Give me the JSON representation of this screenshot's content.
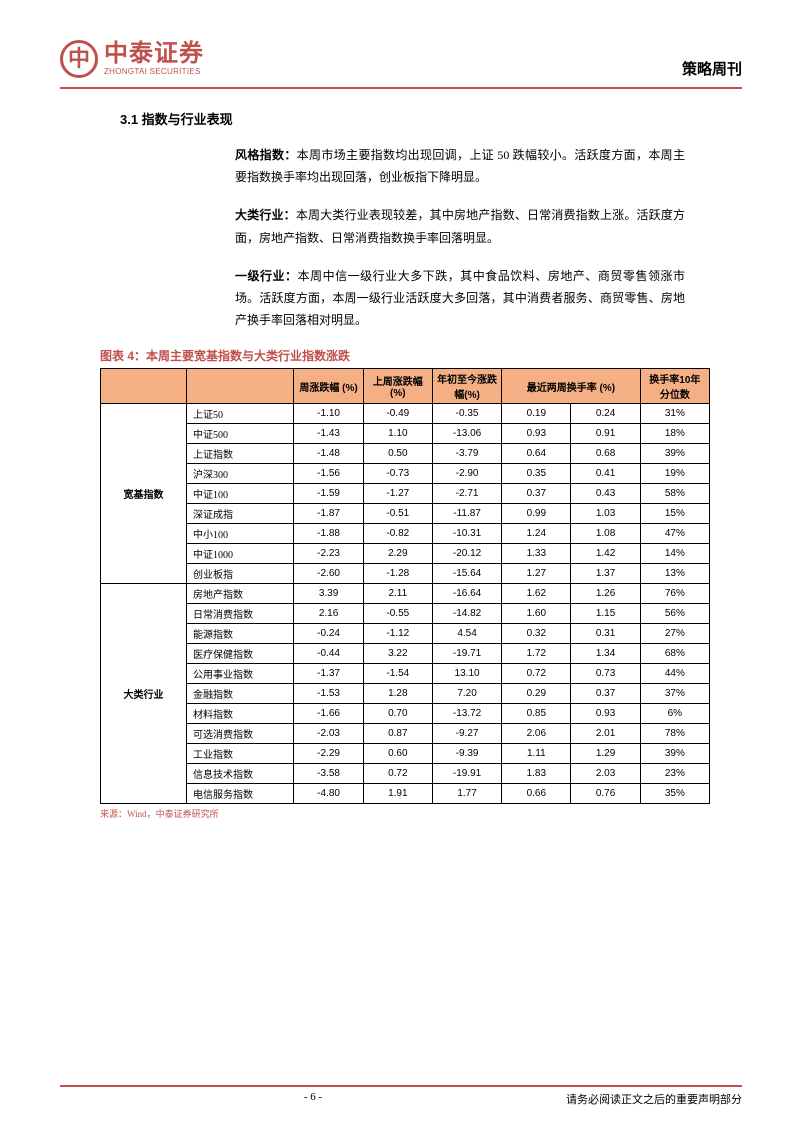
{
  "header": {
    "logo_cn": "中泰证券",
    "logo_en": "ZHONGTAI SECURITIES",
    "logo_mark": "中",
    "right_title": "策略周刊"
  },
  "section_title": "3.1 指数与行业表现",
  "paragraphs": [
    {
      "label": "风格指数：",
      "text": "本周市场主要指数均出现回调，上证 50 跌幅较小。活跃度方面，本周主要指数换手率均出现回落，创业板指下降明显。"
    },
    {
      "label": "大类行业：",
      "text": "本周大类行业表现较差，其中房地产指数、日常消费指数上涨。活跃度方面，房地产指数、日常消费指数换手率回落明显。"
    },
    {
      "label": "一级行业：",
      "text": "本周中信一级行业大多下跌，其中食品饮料、房地产、商贸零售领涨市场。活跃度方面，本周一级行业活跃度大多回落，其中消费者服务、商贸零售、房地产换手率回落相对明显。"
    }
  ],
  "table": {
    "title": "图表 4：本周主要宽基指数与大类行业指数涨跌",
    "headers": [
      "",
      "",
      "周涨跌幅 (%)",
      "上周涨跌幅 (%)",
      "年初至今涨跌幅(%)",
      "最近两周换手率 (%)",
      "换手率10年分位数"
    ],
    "header_colspan": {
      "turnover": 2
    },
    "header_bg": "#f4b084",
    "border_color": "#000000",
    "groups": [
      {
        "name": "宽基指数",
        "rows": [
          {
            "name": "上证50",
            "c1": "-1.10",
            "c2": "-0.49",
            "c3": "-0.35",
            "c4": "0.19",
            "c5": "0.24",
            "c6": "31%"
          },
          {
            "name": "中证500",
            "c1": "-1.43",
            "c2": "1.10",
            "c3": "-13.06",
            "c4": "0.93",
            "c5": "0.91",
            "c6": "18%"
          },
          {
            "name": "上证指数",
            "c1": "-1.48",
            "c2": "0.50",
            "c3": "-3.79",
            "c4": "0.64",
            "c5": "0.68",
            "c6": "39%"
          },
          {
            "name": "沪深300",
            "c1": "-1.56",
            "c2": "-0.73",
            "c3": "-2.90",
            "c4": "0.35",
            "c5": "0.41",
            "c6": "19%"
          },
          {
            "name": "中证100",
            "c1": "-1.59",
            "c2": "-1.27",
            "c3": "-2.71",
            "c4": "0.37",
            "c5": "0.43",
            "c6": "58%"
          },
          {
            "name": "深证成指",
            "c1": "-1.87",
            "c2": "-0.51",
            "c3": "-11.87",
            "c4": "0.99",
            "c5": "1.03",
            "c6": "15%"
          },
          {
            "name": "中小100",
            "c1": "-1.88",
            "c2": "-0.82",
            "c3": "-10.31",
            "c4": "1.24",
            "c5": "1.08",
            "c6": "47%"
          },
          {
            "name": "中证1000",
            "c1": "-2.23",
            "c2": "2.29",
            "c3": "-20.12",
            "c4": "1.33",
            "c5": "1.42",
            "c6": "14%"
          },
          {
            "name": "创业板指",
            "c1": "-2.60",
            "c2": "-1.28",
            "c3": "-15.64",
            "c4": "1.27",
            "c5": "1.37",
            "c6": "13%"
          }
        ]
      },
      {
        "name": "大类行业",
        "rows": [
          {
            "name": "房地产指数",
            "c1": "3.39",
            "c2": "2.11",
            "c3": "-16.64",
            "c4": "1.62",
            "c5": "1.26",
            "c6": "76%"
          },
          {
            "name": "日常消费指数",
            "c1": "2.16",
            "c2": "-0.55",
            "c3": "-14.82",
            "c4": "1.60",
            "c5": "1.15",
            "c6": "56%"
          },
          {
            "name": "能源指数",
            "c1": "-0.24",
            "c2": "-1.12",
            "c3": "4.54",
            "c4": "0.32",
            "c5": "0.31",
            "c6": "27%"
          },
          {
            "name": "医疗保健指数",
            "c1": "-0.44",
            "c2": "3.22",
            "c3": "-19.71",
            "c4": "1.72",
            "c5": "1.34",
            "c6": "68%"
          },
          {
            "name": "公用事业指数",
            "c1": "-1.37",
            "c2": "-1.54",
            "c3": "13.10",
            "c4": "0.72",
            "c5": "0.73",
            "c6": "44%"
          },
          {
            "name": "金融指数",
            "c1": "-1.53",
            "c2": "1.28",
            "c3": "7.20",
            "c4": "0.29",
            "c5": "0.37",
            "c6": "37%"
          },
          {
            "name": "材料指数",
            "c1": "-1.66",
            "c2": "0.70",
            "c3": "-13.72",
            "c4": "0.85",
            "c5": "0.93",
            "c6": "6%"
          },
          {
            "name": "可选消费指数",
            "c1": "-2.03",
            "c2": "0.87",
            "c3": "-9.27",
            "c4": "2.06",
            "c5": "2.01",
            "c6": "78%"
          },
          {
            "name": "工业指数",
            "c1": "-2.29",
            "c2": "0.60",
            "c3": "-9.39",
            "c4": "1.11",
            "c5": "1.29",
            "c6": "39%"
          },
          {
            "name": "信息技术指数",
            "c1": "-3.58",
            "c2": "0.72",
            "c3": "-19.91",
            "c4": "1.83",
            "c5": "2.03",
            "c6": "23%"
          },
          {
            "name": "电信服务指数",
            "c1": "-4.80",
            "c2": "1.91",
            "c3": "1.77",
            "c4": "0.66",
            "c5": "0.76",
            "c6": "35%"
          }
        ]
      }
    ],
    "source": "来源：Wind，中泰证券研究所"
  },
  "footer": {
    "page": "- 6 -",
    "disclaimer": "请务必阅读正文之后的重要声明部分"
  }
}
